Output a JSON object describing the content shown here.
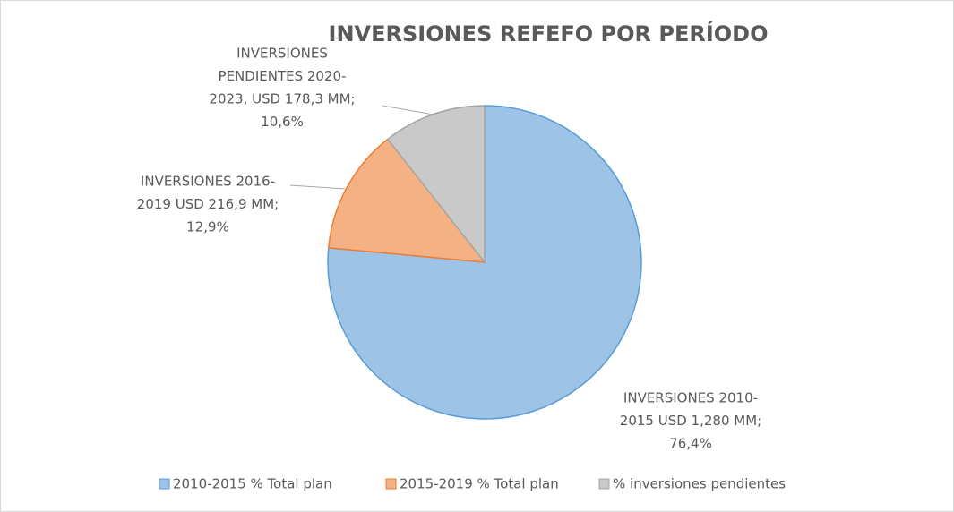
{
  "chart_data": {
    "type": "pie",
    "title": "INVERSIONES  REFEFO  POR PERÍODO",
    "categories": [
      "2010-2015 % Total plan",
      "2015-2019 % Total plan",
      "% inversiones pendientes"
    ],
    "values": [
      76.4,
      12.9,
      10.6
    ],
    "value_labels": [
      [
        "INVERSIONES 2010-",
        "2015 USD 1,280 MM;",
        "76,4%"
      ],
      [
        "INVERSIONES 2016-",
        "2019 USD 216,9 MM;",
        "12,9%"
      ],
      [
        "INVERSIONES",
        "PENDIENTES 2020-",
        "2023, USD 178,3 MM;",
        "10,6%"
      ]
    ],
    "colors": [
      "#9dc3e6",
      "#f4b183",
      "#c9c9c9"
    ],
    "edge_colors": [
      "#5b9bd5",
      "#ed7d31",
      "#a5a5a5"
    ],
    "legend": "bottom"
  }
}
